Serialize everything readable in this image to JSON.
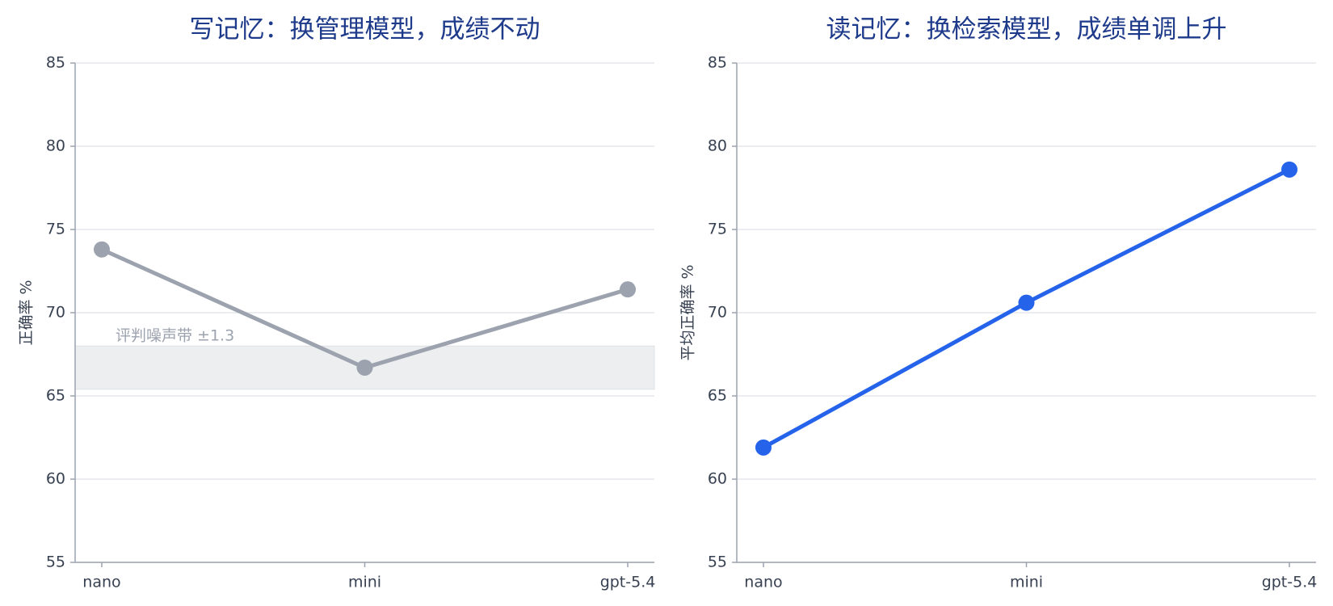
{
  "chart_data": [
    {
      "type": "line",
      "title": "写记忆：换管理模型，成绩不动",
      "y_label": "正确率 %",
      "categories": [
        "nano",
        "mini",
        "gpt-5.4"
      ],
      "series": [
        {
          "name": "写记忆",
          "color": "#9ca3af",
          "values": [
            73.8,
            66.7,
            71.4
          ]
        }
      ],
      "band": {
        "low": 65.4,
        "high": 68.0,
        "label": "评判噪声带 ±1.3"
      },
      "ylim": [
        55,
        85
      ],
      "yticks": [
        55,
        60,
        65,
        70,
        75,
        80,
        85
      ],
      "grid": true
    },
    {
      "type": "line",
      "title": "读记忆：换检索模型，成绩单调上升",
      "y_label": "平均正确率 %",
      "categories": [
        "nano",
        "mini",
        "gpt-5.4"
      ],
      "series": [
        {
          "name": "读记忆",
          "color": "#2563eb",
          "values": [
            61.9,
            70.6,
            78.6
          ]
        }
      ],
      "ylim": [
        55,
        85
      ],
      "yticks": [
        55,
        60,
        65,
        70,
        75,
        80,
        85
      ],
      "grid": true
    }
  ]
}
